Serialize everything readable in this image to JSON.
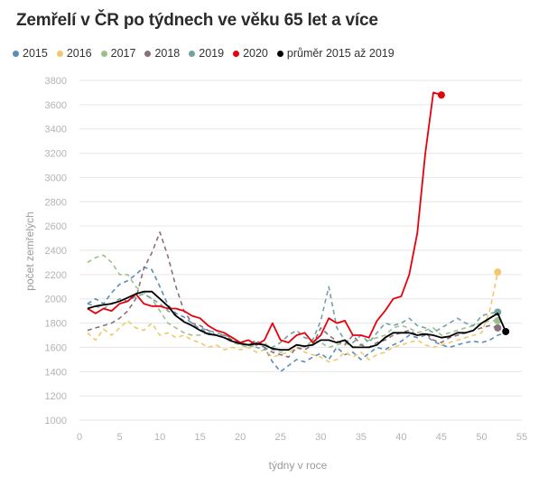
{
  "chart_data": {
    "type": "line",
    "title": "Zemřelí v ČR po týdnech ve věku 65 let a více",
    "xlabel": "týdny v roce",
    "ylabel": "počet zemřelých",
    "xlim": [
      0,
      55
    ],
    "ylim": [
      1000,
      3800
    ],
    "xticks": [
      0,
      5,
      10,
      15,
      20,
      25,
      30,
      35,
      40,
      45,
      50,
      55
    ],
    "yticks": [
      1000,
      1200,
      1400,
      1600,
      1800,
      2000,
      2200,
      2400,
      2600,
      2800,
      3000,
      3200,
      3400,
      3600,
      3800
    ],
    "grid": "horizontal",
    "legend_position": "top-left",
    "series": [
      {
        "name": "2015",
        "color": "#5b8db8",
        "dash": true,
        "end_marker": false,
        "x": [
          1,
          2,
          3,
          4,
          5,
          6,
          7,
          8,
          9,
          10,
          11,
          12,
          13,
          14,
          15,
          16,
          17,
          18,
          19,
          20,
          21,
          22,
          23,
          24,
          25,
          26,
          27,
          28,
          29,
          30,
          31,
          32,
          33,
          34,
          35,
          36,
          37,
          38,
          39,
          40,
          41,
          42,
          43,
          44,
          45,
          46,
          47,
          48,
          49,
          50,
          51,
          52,
          53
        ],
        "y": [
          1960,
          2000,
          1960,
          2050,
          2120,
          2150,
          2200,
          2260,
          2240,
          2100,
          1950,
          1880,
          1850,
          1800,
          1750,
          1720,
          1700,
          1680,
          1650,
          1640,
          1620,
          1640,
          1600,
          1480,
          1400,
          1450,
          1500,
          1480,
          1520,
          1550,
          1500,
          1600,
          1540,
          1560,
          1500,
          1550,
          1600,
          1580,
          1620,
          1650,
          1700,
          1680,
          1700,
          1650,
          1620,
          1600,
          1620,
          1640,
          1650,
          1640,
          1660,
          1700,
          1720
        ]
      },
      {
        "name": "2016",
        "color": "#f2c86b",
        "dash": true,
        "end_marker": true,
        "x": [
          1,
          2,
          3,
          4,
          5,
          6,
          7,
          8,
          9,
          10,
          11,
          12,
          13,
          14,
          15,
          16,
          17,
          18,
          19,
          20,
          21,
          22,
          23,
          24,
          25,
          26,
          27,
          28,
          29,
          30,
          31,
          32,
          33,
          34,
          35,
          36,
          37,
          38,
          39,
          40,
          41,
          42,
          43,
          44,
          45,
          46,
          47,
          48,
          49,
          50,
          51,
          52
        ],
        "y": [
          1720,
          1660,
          1750,
          1700,
          1760,
          1820,
          1760,
          1740,
          1800,
          1700,
          1720,
          1680,
          1700,
          1660,
          1640,
          1600,
          1620,
          1580,
          1600,
          1580,
          1600,
          1560,
          1580,
          1520,
          1540,
          1560,
          1600,
          1560,
          1540,
          1520,
          1480,
          1500,
          1560,
          1520,
          1560,
          1500,
          1540,
          1560,
          1600,
          1620,
          1640,
          1660,
          1620,
          1600,
          1620,
          1640,
          1660,
          1680,
          1700,
          1720,
          1900,
          2220
        ]
      },
      {
        "name": "2017",
        "color": "#9dc08b",
        "dash": true,
        "end_marker": true,
        "x": [
          1,
          2,
          3,
          4,
          5,
          6,
          7,
          8,
          9,
          10,
          11,
          12,
          13,
          14,
          15,
          16,
          17,
          18,
          19,
          20,
          21,
          22,
          23,
          24,
          25,
          26,
          27,
          28,
          29,
          30,
          31,
          32,
          33,
          34,
          35,
          36,
          37,
          38,
          39,
          40,
          41,
          42,
          43,
          44,
          45,
          46,
          47,
          48,
          49,
          50,
          51,
          52
        ],
        "y": [
          2300,
          2340,
          2360,
          2300,
          2200,
          2200,
          2100,
          2050,
          2000,
          1900,
          1800,
          1760,
          1720,
          1700,
          1700,
          1720,
          1700,
          1680,
          1640,
          1620,
          1600,
          1620,
          1640,
          1580,
          1560,
          1580,
          1620,
          1600,
          1660,
          1640,
          1600,
          1620,
          1640,
          1600,
          1620,
          1660,
          1680,
          1700,
          1760,
          1780,
          1760,
          1720,
          1740,
          1760,
          1700,
          1720,
          1740,
          1760,
          1780,
          1800,
          1820,
          1820
        ]
      },
      {
        "name": "2018",
        "color": "#8a6f7e",
        "dash": true,
        "end_marker": true,
        "x": [
          1,
          2,
          3,
          4,
          5,
          6,
          7,
          8,
          9,
          10,
          11,
          12,
          13,
          14,
          15,
          16,
          17,
          18,
          19,
          20,
          21,
          22,
          23,
          24,
          25,
          26,
          27,
          28,
          29,
          30,
          31,
          32,
          33,
          34,
          35,
          36,
          37,
          38,
          39,
          40,
          41,
          42,
          43,
          44,
          45,
          46,
          47,
          48,
          49,
          50,
          51,
          52
        ],
        "y": [
          1740,
          1760,
          1780,
          1800,
          1840,
          1900,
          2000,
          2250,
          2380,
          2550,
          2350,
          2100,
          1900,
          1800,
          1780,
          1740,
          1700,
          1700,
          1660,
          1640,
          1620,
          1660,
          1600,
          1560,
          1540,
          1520,
          1600,
          1580,
          1620,
          1760,
          1700,
          1650,
          1620,
          1700,
          1620,
          1600,
          1640,
          1660,
          1700,
          1720,
          1740,
          1700,
          1720,
          1660,
          1640,
          1680,
          1700,
          1720,
          1740,
          1760,
          1780,
          1760
        ]
      },
      {
        "name": "2019",
        "color": "#6fa3a3",
        "dash": true,
        "end_marker": true,
        "x": [
          1,
          2,
          3,
          4,
          5,
          6,
          7,
          8,
          9,
          10,
          11,
          12,
          13,
          14,
          15,
          16,
          17,
          18,
          19,
          20,
          21,
          22,
          23,
          24,
          25,
          26,
          27,
          28,
          29,
          30,
          31,
          32,
          33,
          34,
          35,
          36,
          37,
          38,
          39,
          40,
          41,
          42,
          43,
          44,
          45,
          46,
          47,
          48,
          49,
          50,
          51,
          52
        ],
        "y": [
          1960,
          1940,
          1920,
          1960,
          2000,
          1980,
          2020,
          2040,
          2000,
          1960,
          1900,
          1860,
          1820,
          1780,
          1760,
          1740,
          1720,
          1700,
          1680,
          1640,
          1620,
          1600,
          1580,
          1600,
          1640,
          1700,
          1740,
          1680,
          1660,
          1820,
          2100,
          1760,
          1660,
          1640,
          1700,
          1640,
          1720,
          1800,
          1780,
          1800,
          1840,
          1780,
          1760,
          1720,
          1760,
          1800,
          1840,
          1800,
          1780,
          1860,
          1880,
          1890
        ]
      },
      {
        "name": "2020",
        "color": "#e8000b",
        "dash": false,
        "end_marker": true,
        "x": [
          1,
          2,
          3,
          4,
          5,
          6,
          7,
          8,
          9,
          10,
          11,
          12,
          13,
          14,
          15,
          16,
          17,
          18,
          19,
          20,
          21,
          22,
          23,
          24,
          25,
          26,
          27,
          28,
          29,
          30,
          31,
          32,
          33,
          34,
          35,
          36,
          37,
          38,
          39,
          40,
          41,
          42,
          43,
          44,
          45
        ],
        "y": [
          1920,
          1880,
          1920,
          1900,
          1960,
          1980,
          2040,
          1960,
          1940,
          1940,
          1920,
          1920,
          1900,
          1860,
          1840,
          1780,
          1740,
          1720,
          1680,
          1640,
          1660,
          1620,
          1660,
          1800,
          1660,
          1640,
          1700,
          1720,
          1640,
          1700,
          1840,
          1800,
          1820,
          1700,
          1700,
          1680,
          1820,
          1900,
          2000,
          2020,
          2200,
          2540,
          3200,
          3700,
          3680
        ]
      },
      {
        "name": "průměr 2015 až 2019",
        "color": "#000000",
        "dash": false,
        "end_marker": true,
        "x": [
          1,
          2,
          3,
          4,
          5,
          6,
          7,
          8,
          9,
          10,
          11,
          12,
          13,
          14,
          15,
          16,
          17,
          18,
          19,
          20,
          21,
          22,
          23,
          24,
          25,
          26,
          27,
          28,
          29,
          30,
          31,
          32,
          33,
          34,
          35,
          36,
          37,
          38,
          39,
          40,
          41,
          42,
          43,
          44,
          45,
          46,
          47,
          48,
          49,
          50,
          51,
          52,
          53
        ],
        "y": [
          1920,
          1940,
          1950,
          1960,
          1980,
          2010,
          2040,
          2060,
          2060,
          2000,
          1940,
          1860,
          1810,
          1780,
          1740,
          1710,
          1700,
          1680,
          1650,
          1630,
          1620,
          1630,
          1620,
          1590,
          1580,
          1580,
          1620,
          1610,
          1620,
          1660,
          1660,
          1640,
          1660,
          1600,
          1600,
          1600,
          1620,
          1680,
          1720,
          1720,
          1720,
          1700,
          1710,
          1700,
          1680,
          1690,
          1720,
          1720,
          1740,
          1800,
          1840,
          1880,
          1730
        ]
      }
    ]
  }
}
